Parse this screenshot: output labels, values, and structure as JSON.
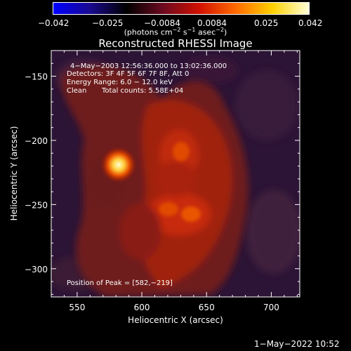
{
  "colorbar": {
    "ticks": [
      "−0.042",
      "−0.025",
      "−0.0084",
      "0.0084",
      "0.025",
      "0.042"
    ],
    "unit_prefix": "(photons cm",
    "unit_exp1": "−2",
    "unit_mid1": " s",
    "unit_exp2": "−1",
    "unit_mid2": " asec",
    "unit_exp3": "−2",
    "unit_suffix": ")",
    "palette": [
      "#0000ff",
      "#1a0a90",
      "#000000",
      "#6b0a20",
      "#d01000",
      "#ff6a00",
      "#ffd000",
      "#ffffd8"
    ]
  },
  "title": "Reconstructed RHESSI Image",
  "annotations": {
    "time_range": "4−May−2003 12:56:36.000 to 13:02:36.000",
    "detectors": "Detectors: 3F 4F 5F 6F 7F 8F, Att 0",
    "energy_range": "Energy Range: 6.0 − 12.0 keV",
    "clean": "Clean",
    "total_counts": "Total counts: 5.58E+04",
    "peak": "Position of Peak = [582,−219]"
  },
  "x_axis": {
    "label": "Heliocentric X (arcsec)",
    "range": [
      530,
      722
    ],
    "ticks": [
      550,
      600,
      650,
      700
    ],
    "tick_labels": [
      "550",
      "600",
      "650",
      "700"
    ]
  },
  "y_axis": {
    "label": "Heliocentric Y (arcsec)",
    "range": [
      -322,
      -130
    ],
    "ticks": [
      -150,
      -200,
      -250,
      -300
    ],
    "tick_labels": [
      "−150",
      "−200",
      "−250",
      "−300"
    ]
  },
  "image": {
    "peak_position": [
      582,
      -219
    ],
    "background_color": "#2c1436"
  },
  "footer": {
    "date": "1−May−2022 10:52"
  }
}
